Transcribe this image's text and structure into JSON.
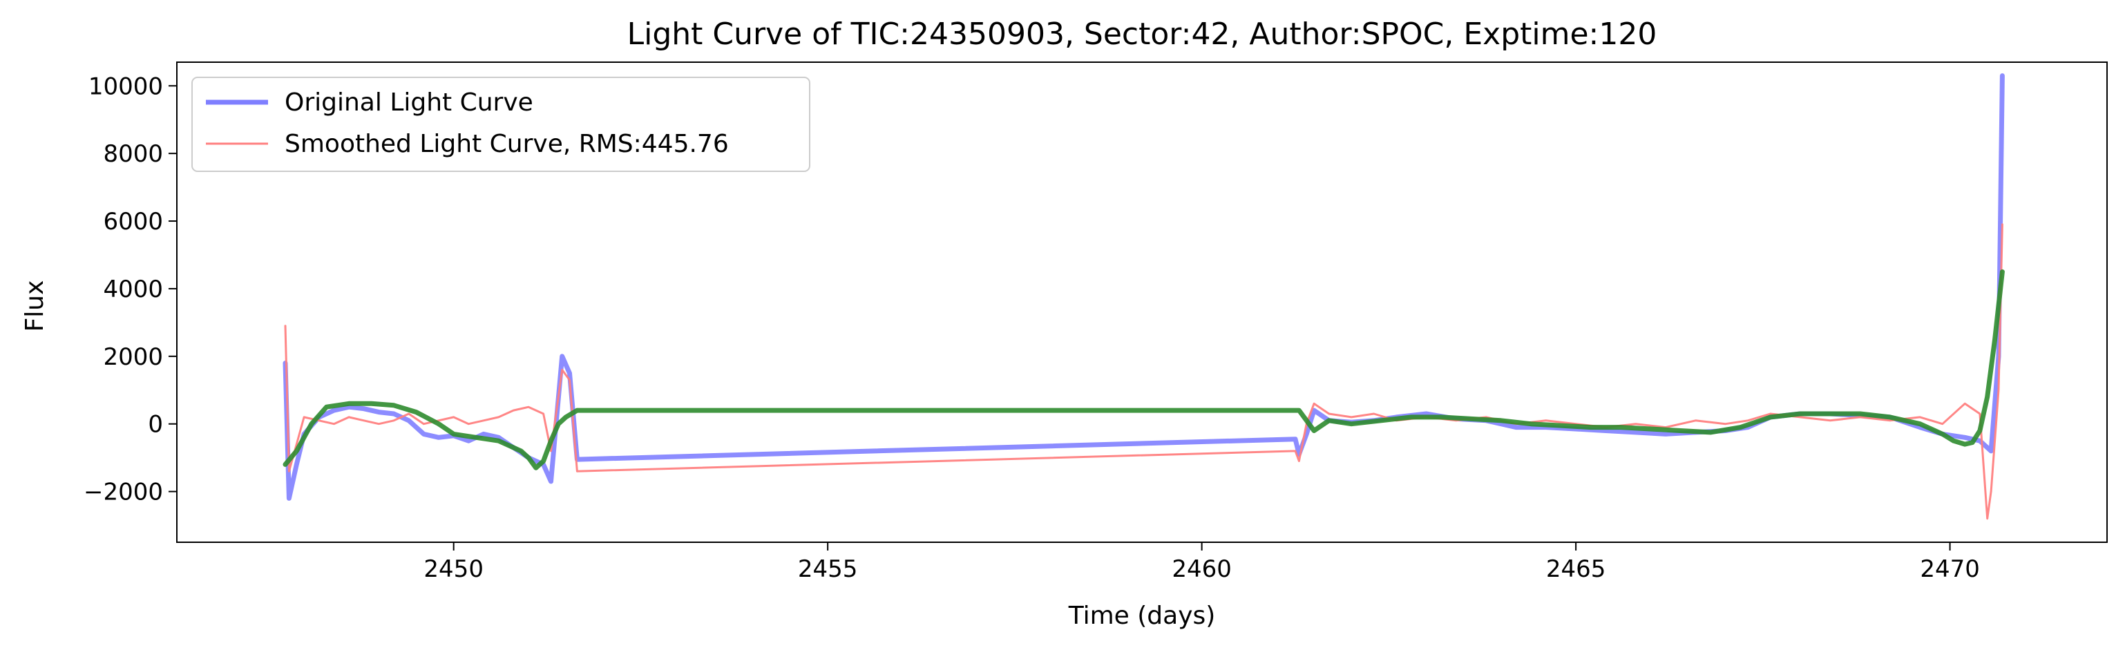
{
  "chart_data": {
    "type": "line",
    "title": "Light Curve of TIC:24350903, Sector:42, Author:SPOC, Exptime:120",
    "xlabel": "Time (days)",
    "ylabel": "Flux",
    "xlim": [
      2446.3,
      2472.1
    ],
    "ylim": [
      -3500,
      10700
    ],
    "x_ticks": [
      2450,
      2455,
      2460,
      2465,
      2470
    ],
    "x_tick_labels": [
      "2450",
      "2455",
      "2460",
      "2465",
      "2470"
    ],
    "y_ticks": [
      -2000,
      0,
      2000,
      4000,
      6000,
      8000,
      10000
    ],
    "y_tick_labels": [
      "−2000",
      "0",
      "2000",
      "4000",
      "6000",
      "8000",
      "10000"
    ],
    "grid": false,
    "legend_position": "upper-left",
    "series": [
      {
        "name": "Original Light Curve",
        "color": "#7f7fff",
        "x": [
          2447.75,
          2447.8,
          2447.9,
          2448.0,
          2448.2,
          2448.4,
          2448.6,
          2448.8,
          2449.0,
          2449.2,
          2449.4,
          2449.6,
          2449.8,
          2450.0,
          2450.2,
          2450.4,
          2450.6,
          2450.8,
          2451.0,
          2451.2,
          2451.3,
          2451.45,
          2451.55,
          2451.65,
          2461.25,
          2461.3,
          2461.4,
          2461.5,
          2461.7,
          2462.0,
          2462.3,
          2462.6,
          2463.0,
          2463.4,
          2463.8,
          2464.2,
          2464.6,
          2465.0,
          2465.4,
          2465.8,
          2466.2,
          2466.6,
          2467.0,
          2467.3,
          2467.6,
          2468.0,
          2468.4,
          2468.8,
          2469.2,
          2469.6,
          2469.9,
          2470.2,
          2470.4,
          2470.55,
          2470.65,
          2470.7
        ],
        "values": [
          1800,
          -2200,
          -1200,
          -300,
          200,
          400,
          500,
          450,
          350,
          300,
          100,
          -300,
          -400,
          -350,
          -500,
          -300,
          -400,
          -700,
          -1000,
          -1200,
          -1700,
          2000,
          1500,
          -1050,
          -450,
          -900,
          -300,
          400,
          100,
          50,
          100,
          200,
          300,
          150,
          100,
          -100,
          -100,
          -150,
          -200,
          -250,
          -300,
          -250,
          -200,
          -100,
          200,
          300,
          300,
          250,
          200,
          -100,
          -300,
          -400,
          -500,
          -800,
          2000,
          10300
        ]
      },
      {
        "name": "Smoothed Light Curve, RMS:445.76",
        "color": "#ff7f7f",
        "x": [
          2447.75,
          2447.8,
          2447.9,
          2448.0,
          2448.2,
          2448.4,
          2448.6,
          2448.8,
          2449.0,
          2449.2,
          2449.4,
          2449.6,
          2449.8,
          2450.0,
          2450.2,
          2450.4,
          2450.6,
          2450.8,
          2451.0,
          2451.2,
          2451.3,
          2451.45,
          2451.55,
          2451.65,
          2461.25,
          2461.3,
          2461.4,
          2461.5,
          2461.7,
          2462.0,
          2462.3,
          2462.6,
          2463.0,
          2463.4,
          2463.8,
          2464.2,
          2464.6,
          2465.0,
          2465.4,
          2465.8,
          2466.2,
          2466.6,
          2467.0,
          2467.3,
          2467.6,
          2468.0,
          2468.4,
          2468.8,
          2469.2,
          2469.6,
          2469.9,
          2470.2,
          2470.4,
          2470.5,
          2470.55,
          2470.65,
          2470.7
        ],
        "values": [
          2900,
          -1400,
          -600,
          200,
          100,
          0,
          200,
          100,
          0,
          100,
          300,
          0,
          100,
          200,
          0,
          100,
          200,
          400,
          500,
          300,
          -800,
          1600,
          1300,
          -1400,
          -800,
          -1100,
          0,
          600,
          300,
          200,
          300,
          100,
          200,
          100,
          200,
          0,
          100,
          0,
          -100,
          0,
          -100,
          100,
          0,
          100,
          300,
          200,
          100,
          200,
          100,
          200,
          0,
          600,
          300,
          -2800,
          -2000,
          1000,
          5900
        ]
      },
      {
        "name": "",
        "color": "#2e8b2e",
        "x": [
          2447.75,
          2447.9,
          2448.1,
          2448.3,
          2448.6,
          2448.9,
          2449.2,
          2449.5,
          2449.8,
          2450.0,
          2450.3,
          2450.6,
          2450.9,
          2451.0,
          2451.1,
          2451.2,
          2451.3,
          2451.4,
          2451.5,
          2451.65,
          2461.3,
          2461.5,
          2461.7,
          2462.0,
          2462.4,
          2462.8,
          2463.2,
          2463.6,
          2464.0,
          2464.4,
          2464.8,
          2465.2,
          2465.6,
          2466.0,
          2466.4,
          2466.8,
          2467.2,
          2467.6,
          2468.0,
          2468.4,
          2468.8,
          2469.2,
          2469.6,
          2469.9,
          2470.05,
          2470.2,
          2470.3,
          2470.4,
          2470.5,
          2470.6,
          2470.7
        ],
        "values": [
          -1200,
          -800,
          0,
          500,
          600,
          600,
          550,
          350,
          0,
          -300,
          -400,
          -500,
          -800,
          -1000,
          -1300,
          -1100,
          -500,
          0,
          200,
          400,
          400,
          -200,
          100,
          0,
          100,
          200,
          200,
          150,
          100,
          0,
          -50,
          -100,
          -100,
          -150,
          -200,
          -250,
          -100,
          200,
          300,
          300,
          300,
          200,
          0,
          -300,
          -500,
          -600,
          -550,
          -200,
          800,
          2500,
          4500
        ]
      }
    ]
  }
}
